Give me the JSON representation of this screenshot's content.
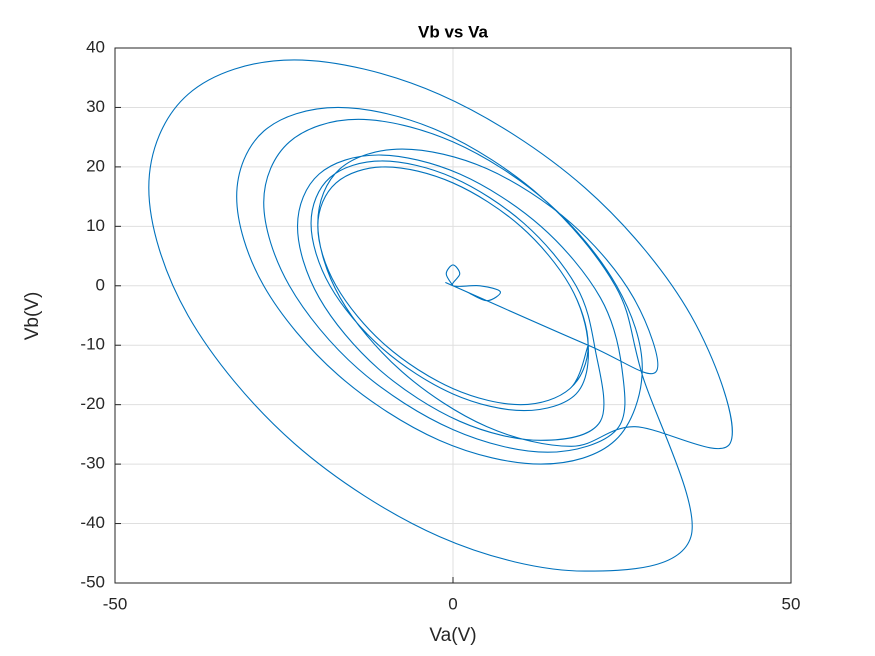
{
  "chart_data": {
    "type": "line",
    "title": "Vb vs Va",
    "xlabel": "Va(V)",
    "ylabel": "Vb(V)",
    "xlim": [
      -50,
      50
    ],
    "ylim": [
      -50,
      40
    ],
    "xticks": [
      -50,
      0,
      50
    ],
    "yticks": [
      -50,
      -40,
      -30,
      -20,
      -10,
      0,
      10,
      20,
      30,
      40
    ],
    "grid": true,
    "series": [
      {
        "color": "#0072bd",
        "x": [
          0,
          -1,
          0,
          1,
          0,
          4,
          7,
          5,
          2,
          0,
          20,
          30,
          26.7,
          17.5,
          5,
          -7.5,
          -16.7,
          -20,
          -16.7,
          -7.5,
          5,
          17.5,
          26.7,
          41,
          35.2,
          19.5,
          -2,
          -23.5,
          -39.2,
          -45,
          -39.2,
          -23.5,
          -2,
          19.5,
          35.2,
          28,
          24,
          13,
          -2,
          -17,
          -28,
          -32,
          -28,
          -17,
          -2,
          13,
          24,
          28,
          24.2,
          14,
          0,
          -14,
          -24.2,
          -28,
          -24.2,
          -14,
          0,
          14,
          24.2,
          25,
          21.8,
          13,
          1,
          -11,
          -19.8,
          -23,
          -19.8,
          -11,
          1,
          13,
          21.8,
          21,
          18.2,
          10.5,
          0,
          -10.5,
          -18.2,
          -21,
          -18.2,
          -10.5,
          0,
          10.5,
          18.2,
          20,
          17.3,
          10,
          0,
          -10,
          -17.3,
          -20,
          -17.3,
          -10,
          0,
          10,
          17.3,
          20,
          17.3,
          10,
          0,
          -10,
          -17.3,
          -20,
          -17.3,
          -10,
          0,
          10,
          17.3,
          20
        ],
        "values": [
          0,
          2,
          3.5,
          2,
          0,
          0,
          -1,
          -2.5,
          -1,
          0,
          -10,
          -14.5,
          -2,
          10.5,
          19.7,
          23,
          19.7,
          10.5,
          -2,
          -14.5,
          -23.7,
          -27,
          -23.7,
          -26.5,
          -5,
          16.5,
          32.2,
          38,
          32.2,
          16.5,
          -5,
          -26.5,
          -42.2,
          -48,
          -42.2,
          -15,
          0,
          15,
          26,
          30,
          26,
          15,
          0,
          -15,
          -26,
          -30,
          -26,
          -14,
          0,
          14,
          24.2,
          28,
          24.2,
          14,
          0,
          -14,
          -24.2,
          -28,
          -24.2,
          -14,
          -2,
          10,
          18.8,
          22,
          18.8,
          10,
          -2,
          -14,
          -22.8,
          -26,
          -22.8,
          -10.5,
          0,
          10.5,
          18.2,
          21,
          18.2,
          10.5,
          0,
          -10.5,
          -18.2,
          -21,
          -18.2,
          -10,
          0,
          10,
          17.3,
          20,
          17.3,
          10,
          0,
          -10,
          -17.3,
          -20,
          -17.3,
          -10,
          0,
          10,
          17.3,
          20,
          17.3,
          10,
          0,
          -10,
          -17.3,
          -20,
          -17.3,
          -10
        ]
      }
    ]
  }
}
